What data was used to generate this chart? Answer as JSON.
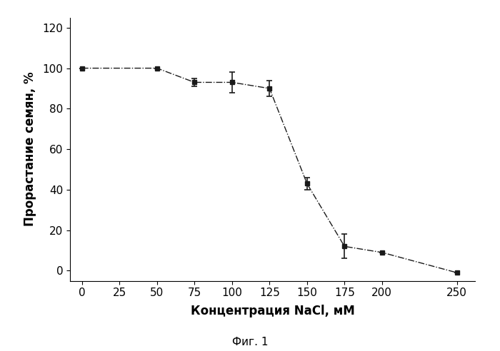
{
  "x": [
    0,
    50,
    75,
    100,
    125,
    150,
    175,
    200,
    250
  ],
  "y": [
    100,
    100,
    93,
    93,
    90,
    43,
    12,
    9,
    -1
  ],
  "yerr": [
    0,
    0,
    2,
    5,
    4,
    3,
    6,
    0,
    0
  ],
  "xlabel": "Концентрация NaCl, мМ",
  "ylabel": "Прорастание семян, %",
  "caption": "Фиг. 1",
  "xticks": [
    0,
    25,
    50,
    75,
    100,
    125,
    150,
    175,
    200,
    250
  ],
  "yticks": [
    0,
    20,
    40,
    60,
    80,
    100,
    120
  ],
  "xlim": [
    -8,
    262
  ],
  "ylim": [
    -5,
    125
  ],
  "line_color": "#1a1a1a",
  "marker_color": "#1a1a1a",
  "background_color": "#ffffff",
  "tick_fontsize": 11,
  "label_fontsize": 12,
  "caption_fontsize": 11,
  "marker_size": 5,
  "line_width": 1.0,
  "elinewidth": 1.2,
  "capsize": 3
}
